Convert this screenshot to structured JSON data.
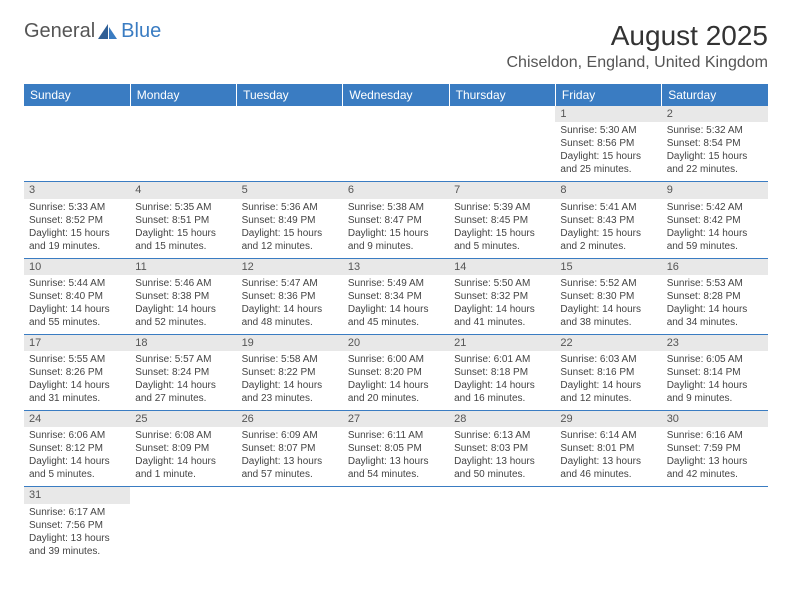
{
  "logo": {
    "text1": "General",
    "text2": "Blue"
  },
  "title": "August 2025",
  "location": "Chiseldon, England, United Kingdom",
  "colors": {
    "header_bg": "#3a7cc2",
    "header_text": "#ffffff",
    "border": "#3a7cc2",
    "daynum_bg": "#e8e8e8",
    "text": "#444444"
  },
  "weekdays": [
    "Sunday",
    "Monday",
    "Tuesday",
    "Wednesday",
    "Thursday",
    "Friday",
    "Saturday"
  ],
  "weeks": [
    [
      null,
      null,
      null,
      null,
      null,
      {
        "n": "1",
        "sr": "Sunrise: 5:30 AM",
        "ss": "Sunset: 8:56 PM",
        "dl": "Daylight: 15 hours and 25 minutes."
      },
      {
        "n": "2",
        "sr": "Sunrise: 5:32 AM",
        "ss": "Sunset: 8:54 PM",
        "dl": "Daylight: 15 hours and 22 minutes."
      }
    ],
    [
      {
        "n": "3",
        "sr": "Sunrise: 5:33 AM",
        "ss": "Sunset: 8:52 PM",
        "dl": "Daylight: 15 hours and 19 minutes."
      },
      {
        "n": "4",
        "sr": "Sunrise: 5:35 AM",
        "ss": "Sunset: 8:51 PM",
        "dl": "Daylight: 15 hours and 15 minutes."
      },
      {
        "n": "5",
        "sr": "Sunrise: 5:36 AM",
        "ss": "Sunset: 8:49 PM",
        "dl": "Daylight: 15 hours and 12 minutes."
      },
      {
        "n": "6",
        "sr": "Sunrise: 5:38 AM",
        "ss": "Sunset: 8:47 PM",
        "dl": "Daylight: 15 hours and 9 minutes."
      },
      {
        "n": "7",
        "sr": "Sunrise: 5:39 AM",
        "ss": "Sunset: 8:45 PM",
        "dl": "Daylight: 15 hours and 5 minutes."
      },
      {
        "n": "8",
        "sr": "Sunrise: 5:41 AM",
        "ss": "Sunset: 8:43 PM",
        "dl": "Daylight: 15 hours and 2 minutes."
      },
      {
        "n": "9",
        "sr": "Sunrise: 5:42 AM",
        "ss": "Sunset: 8:42 PM",
        "dl": "Daylight: 14 hours and 59 minutes."
      }
    ],
    [
      {
        "n": "10",
        "sr": "Sunrise: 5:44 AM",
        "ss": "Sunset: 8:40 PM",
        "dl": "Daylight: 14 hours and 55 minutes."
      },
      {
        "n": "11",
        "sr": "Sunrise: 5:46 AM",
        "ss": "Sunset: 8:38 PM",
        "dl": "Daylight: 14 hours and 52 minutes."
      },
      {
        "n": "12",
        "sr": "Sunrise: 5:47 AM",
        "ss": "Sunset: 8:36 PM",
        "dl": "Daylight: 14 hours and 48 minutes."
      },
      {
        "n": "13",
        "sr": "Sunrise: 5:49 AM",
        "ss": "Sunset: 8:34 PM",
        "dl": "Daylight: 14 hours and 45 minutes."
      },
      {
        "n": "14",
        "sr": "Sunrise: 5:50 AM",
        "ss": "Sunset: 8:32 PM",
        "dl": "Daylight: 14 hours and 41 minutes."
      },
      {
        "n": "15",
        "sr": "Sunrise: 5:52 AM",
        "ss": "Sunset: 8:30 PM",
        "dl": "Daylight: 14 hours and 38 minutes."
      },
      {
        "n": "16",
        "sr": "Sunrise: 5:53 AM",
        "ss": "Sunset: 8:28 PM",
        "dl": "Daylight: 14 hours and 34 minutes."
      }
    ],
    [
      {
        "n": "17",
        "sr": "Sunrise: 5:55 AM",
        "ss": "Sunset: 8:26 PM",
        "dl": "Daylight: 14 hours and 31 minutes."
      },
      {
        "n": "18",
        "sr": "Sunrise: 5:57 AM",
        "ss": "Sunset: 8:24 PM",
        "dl": "Daylight: 14 hours and 27 minutes."
      },
      {
        "n": "19",
        "sr": "Sunrise: 5:58 AM",
        "ss": "Sunset: 8:22 PM",
        "dl": "Daylight: 14 hours and 23 minutes."
      },
      {
        "n": "20",
        "sr": "Sunrise: 6:00 AM",
        "ss": "Sunset: 8:20 PM",
        "dl": "Daylight: 14 hours and 20 minutes."
      },
      {
        "n": "21",
        "sr": "Sunrise: 6:01 AM",
        "ss": "Sunset: 8:18 PM",
        "dl": "Daylight: 14 hours and 16 minutes."
      },
      {
        "n": "22",
        "sr": "Sunrise: 6:03 AM",
        "ss": "Sunset: 8:16 PM",
        "dl": "Daylight: 14 hours and 12 minutes."
      },
      {
        "n": "23",
        "sr": "Sunrise: 6:05 AM",
        "ss": "Sunset: 8:14 PM",
        "dl": "Daylight: 14 hours and 9 minutes."
      }
    ],
    [
      {
        "n": "24",
        "sr": "Sunrise: 6:06 AM",
        "ss": "Sunset: 8:12 PM",
        "dl": "Daylight: 14 hours and 5 minutes."
      },
      {
        "n": "25",
        "sr": "Sunrise: 6:08 AM",
        "ss": "Sunset: 8:09 PM",
        "dl": "Daylight: 14 hours and 1 minute."
      },
      {
        "n": "26",
        "sr": "Sunrise: 6:09 AM",
        "ss": "Sunset: 8:07 PM",
        "dl": "Daylight: 13 hours and 57 minutes."
      },
      {
        "n": "27",
        "sr": "Sunrise: 6:11 AM",
        "ss": "Sunset: 8:05 PM",
        "dl": "Daylight: 13 hours and 54 minutes."
      },
      {
        "n": "28",
        "sr": "Sunrise: 6:13 AM",
        "ss": "Sunset: 8:03 PM",
        "dl": "Daylight: 13 hours and 50 minutes."
      },
      {
        "n": "29",
        "sr": "Sunrise: 6:14 AM",
        "ss": "Sunset: 8:01 PM",
        "dl": "Daylight: 13 hours and 46 minutes."
      },
      {
        "n": "30",
        "sr": "Sunrise: 6:16 AM",
        "ss": "Sunset: 7:59 PM",
        "dl": "Daylight: 13 hours and 42 minutes."
      }
    ],
    [
      {
        "n": "31",
        "sr": "Sunrise: 6:17 AM",
        "ss": "Sunset: 7:56 PM",
        "dl": "Daylight: 13 hours and 39 minutes."
      },
      null,
      null,
      null,
      null,
      null,
      null
    ]
  ]
}
